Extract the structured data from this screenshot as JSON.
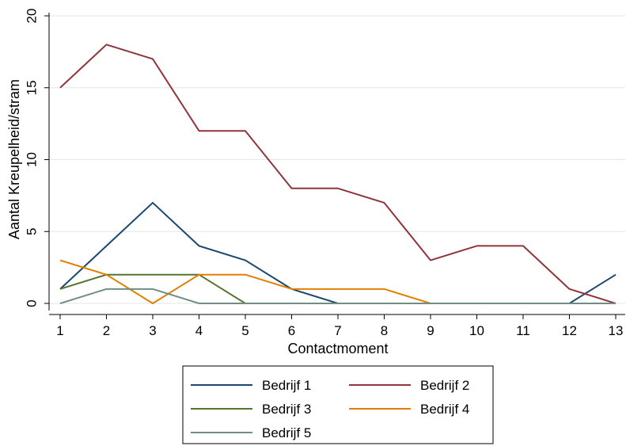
{
  "chart_data": {
    "type": "line",
    "title": "",
    "xlabel": "Contactmoment",
    "ylabel": "Aantal Kreupelheid/stram",
    "x": [
      1,
      2,
      3,
      4,
      5,
      6,
      7,
      8,
      9,
      10,
      11,
      12,
      13
    ],
    "xlim": [
      1,
      13
    ],
    "ylim": [
      0,
      20
    ],
    "yticks": [
      0,
      5,
      10,
      15,
      20
    ],
    "grid": true,
    "legend_position": "bottom",
    "series": [
      {
        "name": "Bedrijf 1",
        "color": "#1a476f",
        "values": [
          1,
          4,
          7,
          4,
          3,
          1,
          0,
          0,
          0,
          0,
          0,
          0,
          2
        ]
      },
      {
        "name": "Bedrijf 2",
        "color": "#90353b",
        "values": [
          15,
          18,
          17,
          12,
          12,
          8,
          8,
          7,
          3,
          4,
          4,
          1,
          0
        ]
      },
      {
        "name": "Bedrijf 3",
        "color": "#55752f",
        "values": [
          1,
          2,
          2,
          2,
          0,
          0,
          0,
          0,
          0,
          0,
          0,
          0,
          0
        ]
      },
      {
        "name": "Bedrijf 4",
        "color": "#e37e00",
        "values": [
          3,
          2,
          0,
          2,
          2,
          1,
          1,
          1,
          0,
          0,
          0,
          0,
          0
        ]
      },
      {
        "name": "Bedrijf 5",
        "color": "#6e8e84",
        "values": [
          0,
          1,
          1,
          0,
          0,
          0,
          0,
          0,
          0,
          0,
          0,
          0,
          0
        ]
      }
    ]
  }
}
